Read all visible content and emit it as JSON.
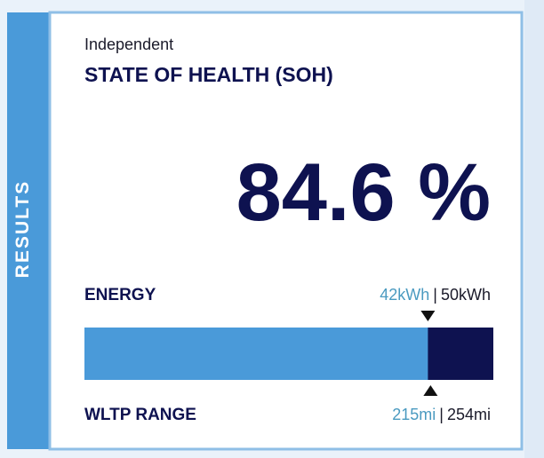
{
  "sidebar": {
    "label": "RESULTS"
  },
  "header": {
    "subtitle": "Independent",
    "title": "STATE OF HEALTH (SOH)"
  },
  "soh": {
    "label": "84.6 %"
  },
  "energy": {
    "name": "ENERGY",
    "current": {
      "value": 42,
      "label": "42kWh"
    },
    "separator": "|",
    "total": {
      "value": 50,
      "label": "50kWh"
    }
  },
  "range": {
    "name": "WLTP RANGE",
    "current": {
      "value": 215,
      "label": "215mi"
    },
    "separator": "|",
    "total": {
      "value": 254,
      "label": "254mi"
    }
  },
  "colors": {
    "accent": "#4a9ad9",
    "dark": "#0e1250",
    "light_text": "#4a9ac0"
  }
}
